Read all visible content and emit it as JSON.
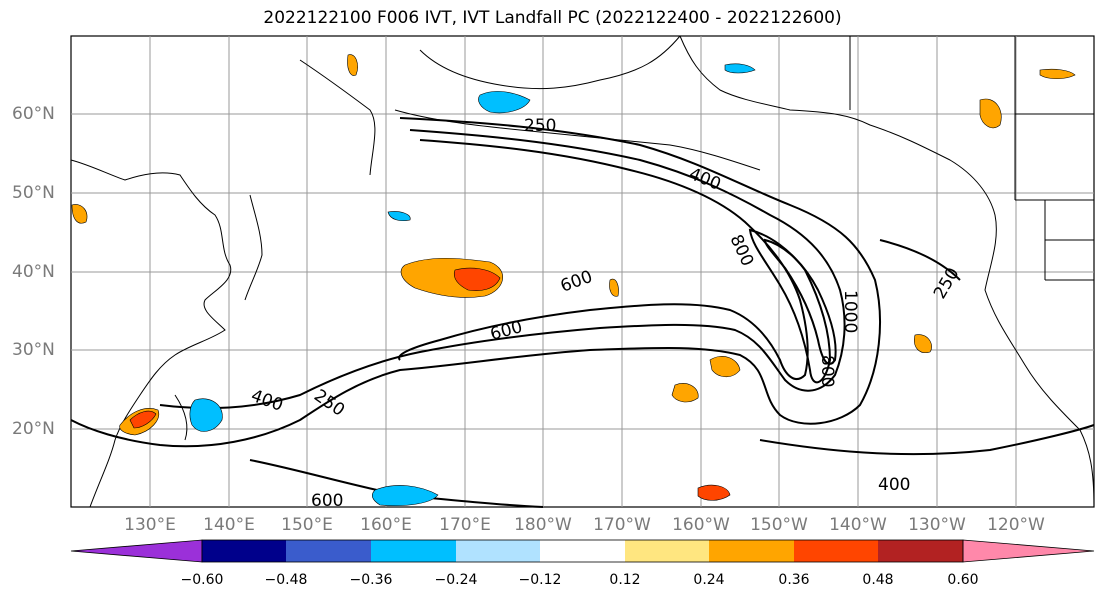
{
  "title": "2022122100 F006 IVT, IVT Landfall PC (2022122400 - 2022122600)",
  "lat_labels": [
    "60°N",
    "50°N",
    "40°N",
    "30°N",
    "20°N"
  ],
  "lon_labels": [
    "130°E",
    "140°E",
    "150°E",
    "160°E",
    "170°E",
    "180°W",
    "170°W",
    "160°W",
    "150°W",
    "140°W",
    "130°W",
    "120°W"
  ],
  "contour_labels": [
    "250",
    "400",
    "600",
    "800",
    "1000",
    "800",
    "250",
    "600",
    "400",
    "250",
    "600",
    "400"
  ],
  "colorbar": {
    "ticks": [
      "−0.60",
      "−0.48",
      "−0.36",
      "−0.24",
      "−0.12",
      "0.12",
      "0.24",
      "0.36",
      "0.48",
      "0.60"
    ],
    "colors": [
      "#9b30d9",
      "#00008b",
      "#3a5ccc",
      "#00bfff",
      "#b0e2ff",
      "#ffffff",
      "#ffe680",
      "#ffa500",
      "#ff4500",
      "#b22222",
      "#ff88aa"
    ]
  }
}
